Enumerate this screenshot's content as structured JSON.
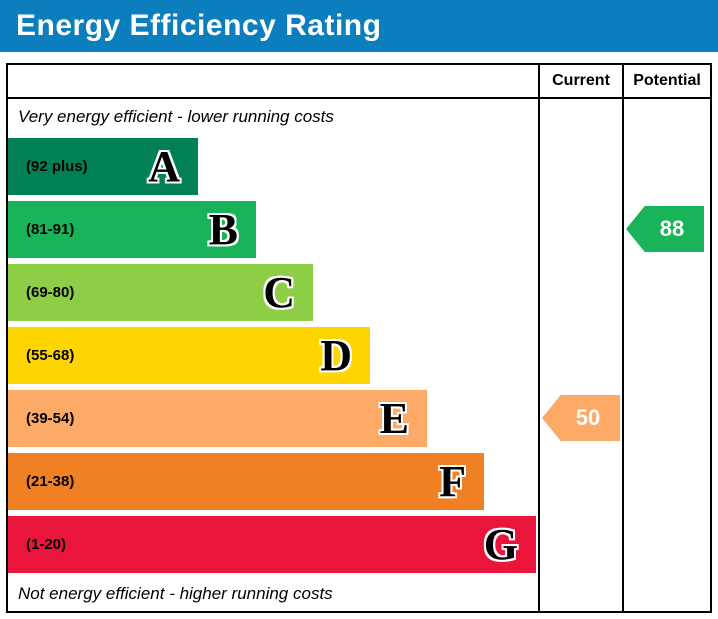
{
  "title": "Energy Efficiency Rating",
  "title_bar_color": "#0c7dbd",
  "header": {
    "current": "Current",
    "potential": "Potential"
  },
  "notes": {
    "top": "Very energy efficient - lower running costs",
    "bottom": "Not energy efficient - higher running costs"
  },
  "bands": [
    {
      "letter": "A",
      "range": "(92 plus)",
      "color": "#008054"
    },
    {
      "letter": "B",
      "range": "(81-91)",
      "color": "#19b459"
    },
    {
      "letter": "C",
      "range": "(69-80)",
      "color": "#8dce46"
    },
    {
      "letter": "D",
      "range": "(55-68)",
      "color": "#ffd500"
    },
    {
      "letter": "E",
      "range": "(39-54)",
      "color": "#fcaa65"
    },
    {
      "letter": "F",
      "range": "(21-38)",
      "color": "#ef8023"
    },
    {
      "letter": "G",
      "range": "(1-20)",
      "color": "#e9153b"
    }
  ],
  "current": {
    "value": "50",
    "band": "E",
    "color": "#fcaa65"
  },
  "potential": {
    "value": "88",
    "band": "B",
    "color": "#19b459"
  },
  "chart_data": {
    "type": "bar",
    "title": "Energy Efficiency Rating",
    "categories": [
      "A (92 plus)",
      "B (81-91)",
      "C (69-80)",
      "D (55-68)",
      "E (39-54)",
      "F (21-38)",
      "G (1-20)"
    ],
    "band_colors": [
      "#008054",
      "#19b459",
      "#8dce46",
      "#ffd500",
      "#fcaa65",
      "#ef8023",
      "#e9153b"
    ],
    "columns": [
      "Current",
      "Potential"
    ],
    "current_rating": 50,
    "current_band": "E",
    "potential_rating": 88,
    "potential_band": "B",
    "top_annotation": "Very energy efficient - lower running costs",
    "bottom_annotation": "Not energy efficient - higher running costs",
    "rating_scale": [
      1,
      100
    ]
  }
}
